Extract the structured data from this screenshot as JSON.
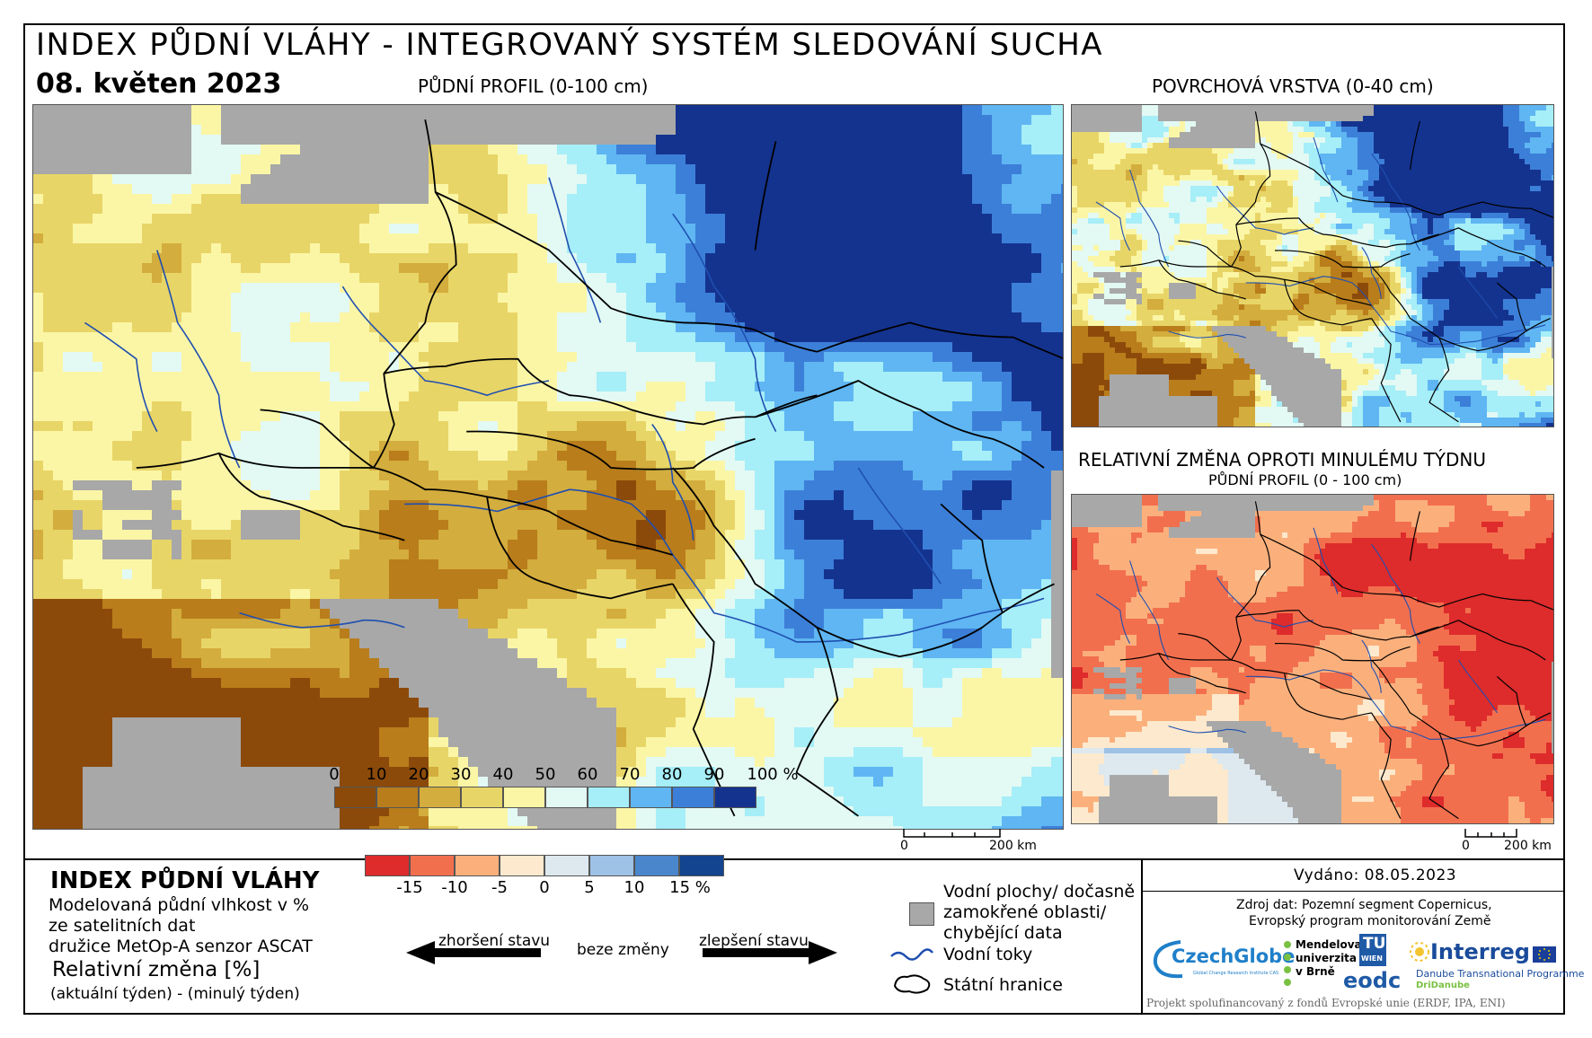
{
  "title": "INDEX PŮDNÍ VLÁHY - INTEGROVANÝ SYSTÉM SLEDOVÁNÍ SUCHA",
  "date": "08. květen 2023",
  "maps": {
    "main_title": "PŮDNÍ PROFIL (0-100 cm)",
    "surface_title": "POVRCHOVÁ VRSTVA (0-40 cm)",
    "change_title": "RELATIVNÍ ZMĚNA OPROTI MINULÉMU TÝDNU",
    "change_subtitle": "PŮDNÍ PROFIL (0 - 100 cm)",
    "scale_zero": "0",
    "scale_end": "200 km"
  },
  "legend": {
    "heading": "INDEX PŮDNÍ VLÁHY",
    "desc_line1": "Modelovaná půdní vlhkost v %",
    "desc_line2": "ze satelitních dat",
    "desc_line3": "družice MetOp-A senzor ASCAT",
    "change_heading": "Relativní změna [%]",
    "change_formula": "(aktuální týden) - (minulý týden)",
    "index_ticks": [
      "0",
      "10",
      "20",
      "30",
      "40",
      "50",
      "60",
      "70",
      "80",
      "90",
      "100 %"
    ],
    "index_colors": [
      "#8c4a0a",
      "#b97d1b",
      "#d3ad3d",
      "#e8d567",
      "#fbf6a6",
      "#e3f9f3",
      "#a6eef8",
      "#5fb6f2",
      "#3c7fd8",
      "#14338f"
    ],
    "worse_label": "zhoršení stavu",
    "nochange_label": "beze změny",
    "better_label": "zlepšení stavu",
    "change_ticks": [
      "-15",
      "-10",
      "-5",
      "0",
      "5",
      "10",
      "15 %"
    ],
    "change_colors": [
      "#de2b2b",
      "#f26f4e",
      "#fbb07c",
      "#fde9cd",
      "#dde8ef",
      "#9ec1e6",
      "#4a86cc",
      "#12448f"
    ],
    "water_label_line1": "Vodní plochy/ dočasně",
    "water_label_line2": "zamokřené oblasti/",
    "water_label_line3": "chybějící data",
    "rivers_label": "Vodní toky",
    "borders_label": "Státní hranice"
  },
  "info": {
    "issued": "Vydáno: 08.05.2023",
    "source_line1": "Zdroj dat: Pozemní segment Copernicus,",
    "source_line2": "Evropský program monitorování Země",
    "footer": "Projekt spolufinancovaný z fondů Evropské unie (ERDF, IPA, ENI)",
    "logo_czechglobe": "CzechGlobe",
    "logo_czechglobe_sub": "Global Change Research Institute CAS",
    "logo_mendel_1": "Mendelova",
    "logo_mendel_2": "univerzita",
    "logo_mendel_3": "v Brně",
    "logo_tu": "TU",
    "logo_tu_sub": "WIEN",
    "logo_eodc": "eodc",
    "logo_interreg": "Interreg",
    "logo_interreg_sub1": "Danube Transnational Programme",
    "logo_interreg_sub2": "DriDanube"
  }
}
